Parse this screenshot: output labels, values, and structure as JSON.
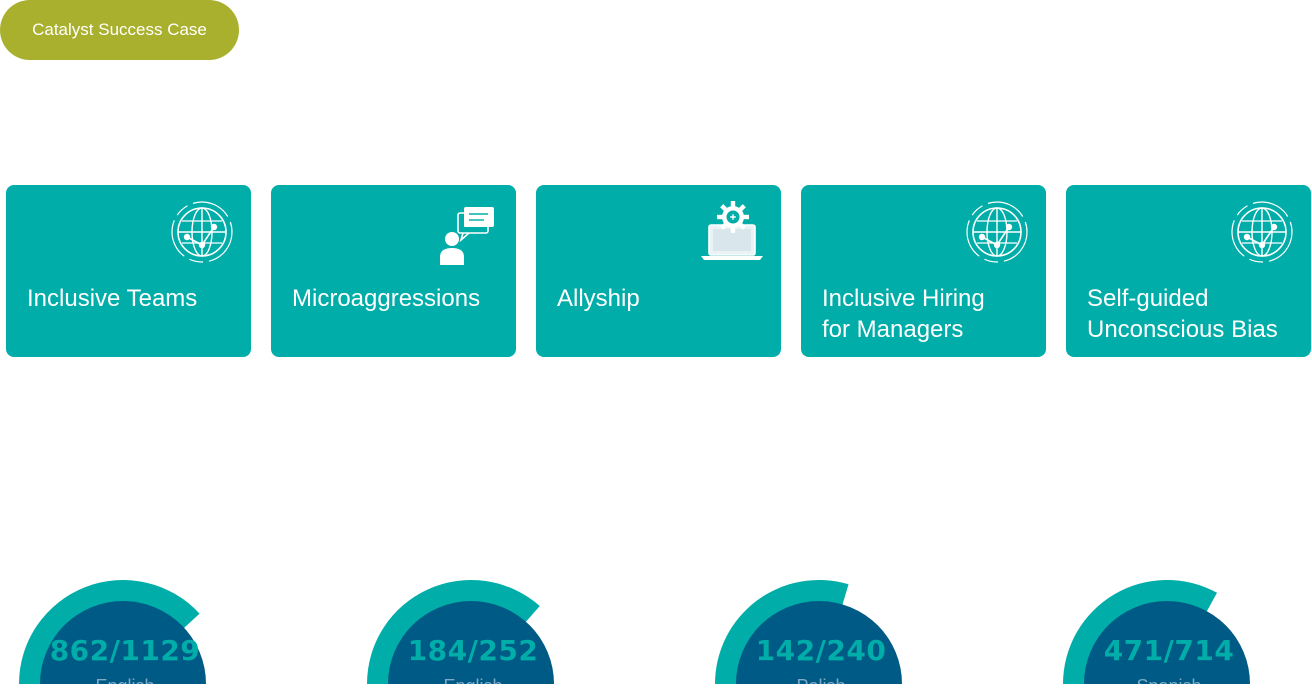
{
  "header": {
    "badge_label": "Catalyst Success Case"
  },
  "courses": [
    {
      "title": "Inclusive Teams",
      "icon": "globe-network-icon"
    },
    {
      "title": "Microaggressions",
      "icon": "person-chat-icon"
    },
    {
      "title": "Allyship",
      "icon": "laptop-gear-icon"
    },
    {
      "title": "Inclusive Hiring\nfor Managers",
      "icon": "globe-network-icon"
    },
    {
      "title": "Self-guided\nUnconscious Bias",
      "icon": "globe-network-icon"
    }
  ],
  "gauges": [
    {
      "value": "862/1129",
      "language": "English",
      "completed": 862,
      "total": 1129
    },
    {
      "value": "184/252",
      "language": "English",
      "completed": 184,
      "total": 252
    },
    {
      "value": "142/240",
      "language": "Polish",
      "completed": 142,
      "total": 240
    },
    {
      "value": "471/714",
      "language": "Spanish",
      "completed": 471,
      "total": 714
    }
  ],
  "colors": {
    "badge": "#a9b02d",
    "card": "#00ada8",
    "gauge_outer": "#00ada8",
    "gauge_inner": "#005a86",
    "gauge_text": "#00ada8"
  }
}
